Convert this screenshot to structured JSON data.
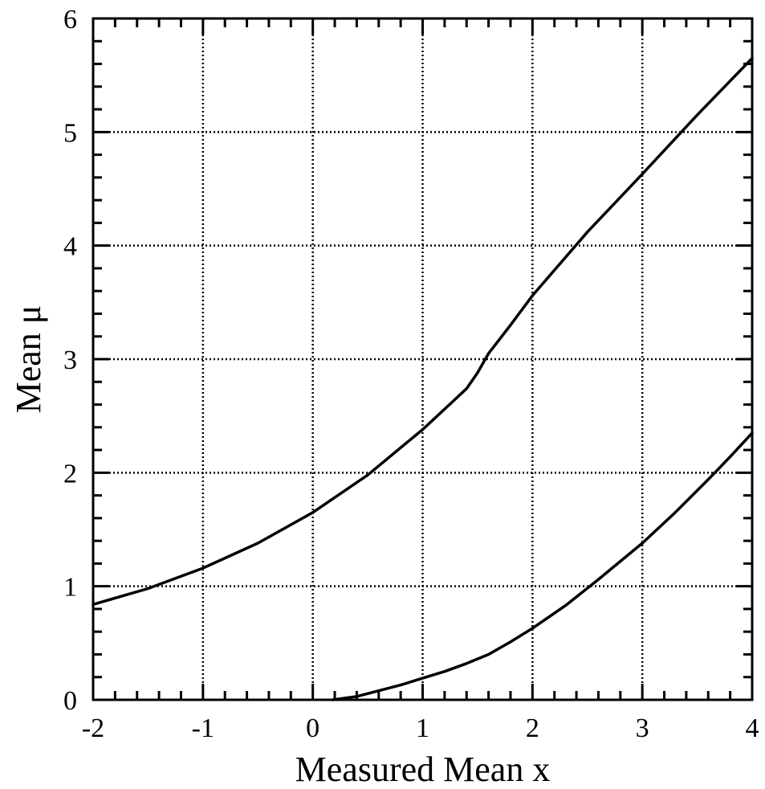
{
  "chart_data": {
    "type": "line",
    "xlabel": "Measured Mean x",
    "ylabel": "Mean μ",
    "xlim": [
      -2,
      4
    ],
    "ylim": [
      0,
      6
    ],
    "xticks": [
      "-2",
      "-1",
      "0",
      "1",
      "2",
      "3",
      "4"
    ],
    "yticks": [
      "0",
      "1",
      "2",
      "3",
      "4",
      "5",
      "6"
    ],
    "grid": true,
    "grid_style": "dotted",
    "line_color": "#000000",
    "series": [
      {
        "x": [
          -2.0,
          -1.5,
          -1.0,
          -0.5,
          0.0,
          0.5,
          1.0,
          1.3,
          1.4,
          1.5,
          1.6,
          1.8,
          2.0,
          2.5,
          3.0,
          3.5,
          4.0
        ],
        "y": [
          0.84,
          0.98,
          1.16,
          1.38,
          1.65,
          1.98,
          2.38,
          2.65,
          2.74,
          2.88,
          3.05,
          3.3,
          3.56,
          4.12,
          4.63,
          5.15,
          5.65
        ]
      },
      {
        "x": [
          0.18,
          0.4,
          0.6,
          0.8,
          1.0,
          1.2,
          1.4,
          1.6,
          1.8,
          2.0,
          2.3,
          2.6,
          2.8,
          3.0,
          3.3,
          3.6,
          3.8,
          4.0
        ],
        "y": [
          0.0,
          0.03,
          0.08,
          0.13,
          0.19,
          0.25,
          0.32,
          0.4,
          0.51,
          0.63,
          0.83,
          1.06,
          1.22,
          1.38,
          1.65,
          1.94,
          2.14,
          2.35
        ]
      }
    ]
  }
}
